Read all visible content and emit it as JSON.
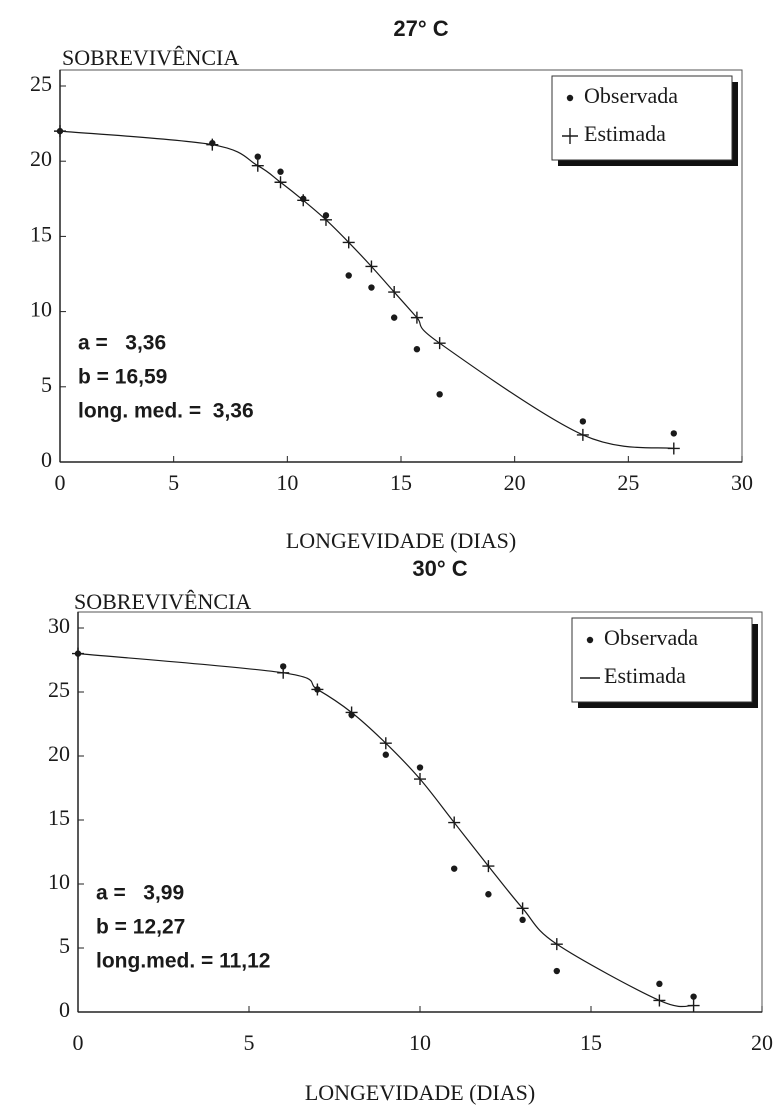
{
  "chart_data": [
    {
      "type": "scatter",
      "title": "27° C",
      "ylabel": "SOBREVIVÊNCIA",
      "xlabel": "LONGEVIDADE (DIAS)",
      "xlim": [
        0,
        30
      ],
      "xticks": [
        0,
        5,
        10,
        15,
        20,
        25,
        30
      ],
      "ylim": [
        0,
        25
      ],
      "yticks": [
        0,
        5,
        10,
        15,
        20,
        25
      ],
      "legend": "upper right",
      "series": [
        {
          "name": "Observada",
          "color": "#1a1a1a",
          "marker": "dot",
          "legend_symbol": "dot",
          "x": [
            0,
            6.7,
            8.7,
            9.7,
            10.7,
            11.7,
            12.7,
            13.7,
            14.7,
            15.7,
            16.7,
            23,
            27
          ],
          "values": [
            22,
            21.2,
            20.3,
            19.3,
            17.5,
            16.4,
            12.4,
            11.6,
            9.6,
            7.5,
            4.5,
            2.7,
            1.9
          ]
        },
        {
          "name": "Estimada",
          "color": "#1a1a1a",
          "marker": "plus",
          "legend_symbol": "plus",
          "x": [
            0,
            6.7,
            8.7,
            9.7,
            10.7,
            11.7,
            12.7,
            13.7,
            14.7,
            15.7,
            16.7,
            23,
            27
          ],
          "values": [
            22,
            21.1,
            19.7,
            18.6,
            17.4,
            16.1,
            14.6,
            13.0,
            11.3,
            9.6,
            7.9,
            1.8,
            0.9
          ]
        }
      ],
      "annotations": [
        "a =   3,36",
        "b = 16,59",
        "long. med. =  3,36"
      ]
    },
    {
      "type": "scatter",
      "title": "30° C",
      "ylabel": "SOBREVIVÊNCIA",
      "xlabel": "LONGEVIDADE (DIAS)",
      "xlim": [
        0,
        20
      ],
      "xticks": [
        0,
        5,
        10,
        15,
        20
      ],
      "ylim": [
        0,
        30
      ],
      "yticks": [
        0,
        5,
        10,
        15,
        20,
        25,
        30
      ],
      "legend": "upper right",
      "series": [
        {
          "name": "Observada",
          "color": "#1a1a1a",
          "marker": "dot",
          "legend_symbol": "dot",
          "x": [
            0,
            6,
            7,
            8,
            9,
            10,
            11,
            12,
            13,
            14,
            17,
            18
          ],
          "values": [
            28,
            27,
            25.2,
            23.2,
            20.1,
            19.1,
            11.2,
            9.2,
            7.2,
            3.2,
            2.2,
            1.2
          ]
        },
        {
          "name": "Estimada",
          "color": "#1a1a1a",
          "marker": "plus",
          "legend_symbol": "line",
          "x": [
            0,
            6,
            7,
            8,
            9,
            10,
            11,
            12,
            13,
            14,
            17,
            18
          ],
          "values": [
            28,
            26.5,
            25.2,
            23.4,
            21.0,
            18.2,
            14.8,
            11.4,
            8.1,
            5.3,
            0.9,
            0.5
          ]
        }
      ],
      "annotations": [
        "a =   3,99",
        "b = 12,27",
        "long.med. = 11,12"
      ]
    }
  ]
}
